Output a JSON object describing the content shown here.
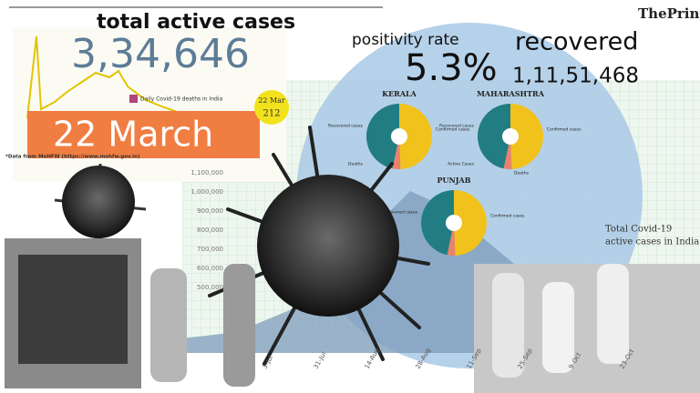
{
  "brand": "ThePrint",
  "headline": {
    "label": "total active cases",
    "value": "3,34,646"
  },
  "positivity": {
    "label": "positivity rate",
    "value": "5.3%"
  },
  "recovered": {
    "label": "recovered",
    "value": "1,11,51,468"
  },
  "date_banner": "22 March",
  "deaths_chart": {
    "legend": "Daily Covid-19 deaths in India",
    "callout_date": "22 Mar",
    "callout_value": "212",
    "source": "*Data from MoHFW (https://www.mohfw.gov.in)"
  },
  "pies": [
    {
      "state": "KERALA",
      "labels": [
        "Recovered cases",
        "Confirmed cases",
        "Deaths"
      ]
    },
    {
      "state": "MAHARASHTRA",
      "labels": [
        "Recovered cases",
        "Confirmed cases",
        "Active Cases",
        "Deaths"
      ]
    },
    {
      "state": "PUNJAB",
      "labels": [
        "Recovered cases",
        "Confirmed cases"
      ]
    }
  ],
  "active_chart": {
    "title_lines": [
      "Total Covid-19",
      "active cases in India"
    ],
    "yticks": [
      "1,100,000",
      "1,000,000",
      "900,000",
      "800,000",
      "700,000",
      "600,000",
      "500,000"
    ],
    "xticks": [
      "3-Jul",
      "31-Jul",
      "14-Aug",
      "28-Aug",
      "11-Sep",
      "25-Sep",
      "9-Oct",
      "23-Oct"
    ]
  }
}
